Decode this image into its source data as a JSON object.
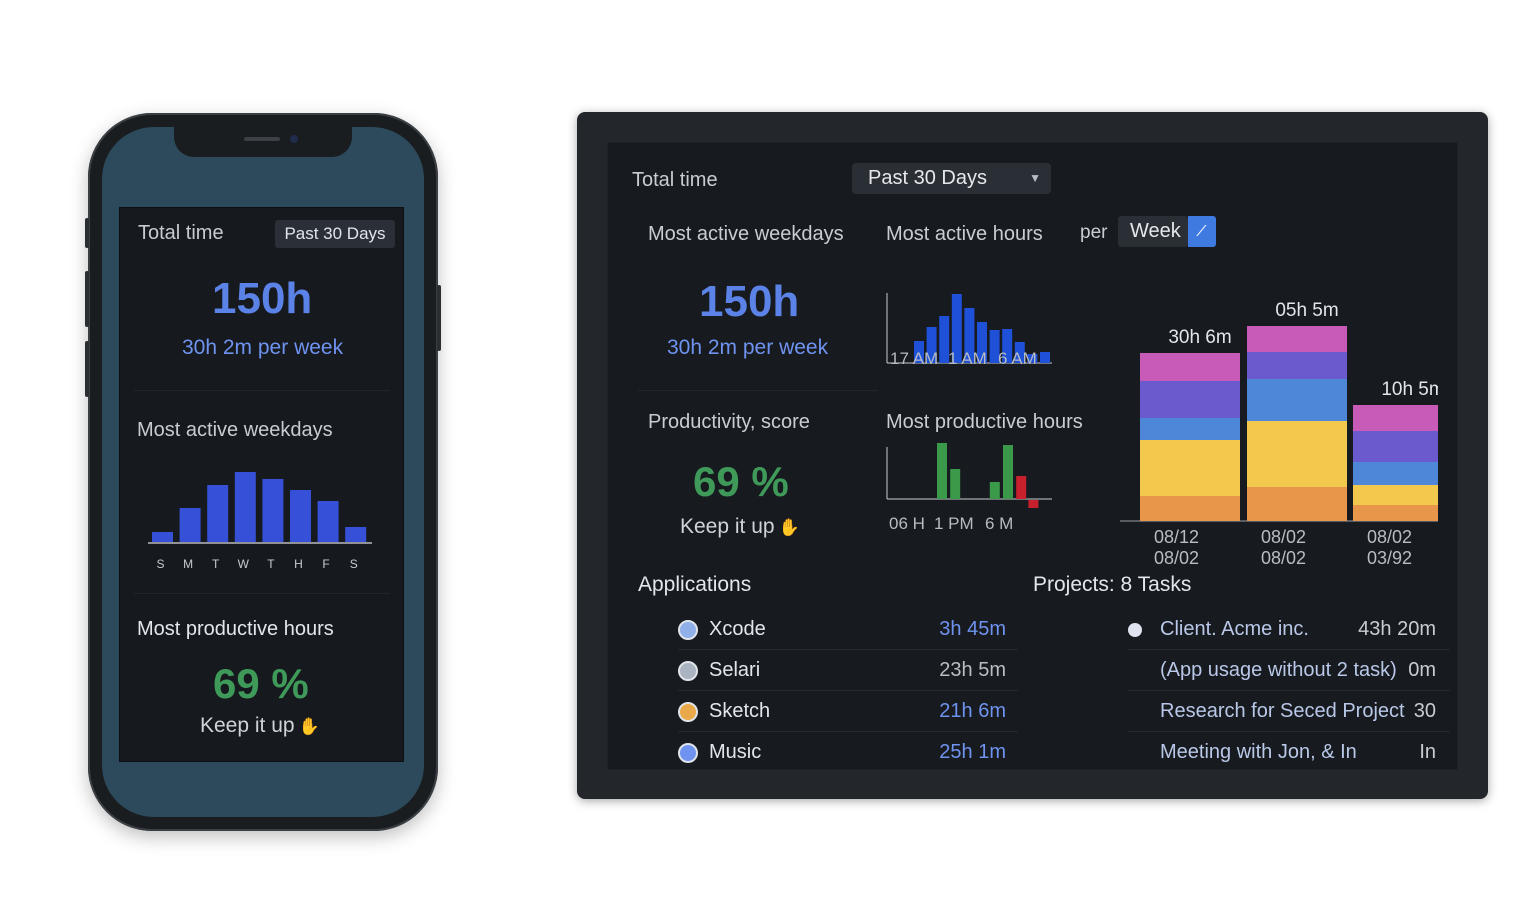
{
  "phone": {
    "total_time_label": "Total time",
    "range_label": "Past 30 Days",
    "total_hours": "150h",
    "per_week": "30h 2m per week",
    "weekdays_title": "Most active weekdays",
    "weekday_labels": [
      "S",
      "M",
      "T",
      "W",
      "T",
      "H",
      "F",
      "S"
    ],
    "weekday_values": [
      10,
      34,
      57,
      70,
      63,
      52,
      41,
      15
    ],
    "productive_title": "Most productive hours",
    "score": "69 %",
    "keep_it_up": "Keep it up",
    "thumb_icon": "thumbs-up-icon"
  },
  "desktop": {
    "total_time_label": "Total time",
    "range_label": "Past 30 Days",
    "weekdays_title": "Most active weekdays",
    "hours_title": "Most active hours",
    "per_label": "per",
    "per_value": "Week",
    "total_hours": "150h",
    "per_week": "30h 2m per week",
    "hours_ticks": [
      "17 AM",
      "1 AM",
      "6  AM"
    ],
    "hours_values": [
      22,
      36,
      47,
      69,
      55,
      41,
      33,
      34,
      21,
      9,
      11
    ],
    "productivity_title": "Productivity, score",
    "productive_hours_title": "Most productive hours",
    "score": "69 %",
    "keep_it_up": "Keep it up",
    "productive_ticks": [
      "06 H",
      "1 PM",
      "6 M"
    ],
    "productive_values": [
      {
        "v": 56,
        "c": "#3a9a4a"
      },
      {
        "v": 30,
        "c": "#3a9a4a"
      },
      {
        "v": 0,
        "c": "#3a9a4a"
      },
      {
        "v": 0,
        "c": "#3a9a4a"
      },
      {
        "v": 17,
        "c": "#3a9a4a"
      },
      {
        "v": 54,
        "c": "#3a9a4a"
      },
      {
        "v": 23,
        "c": "#c8202c"
      },
      {
        "v": -8,
        "c": "#c8202c"
      }
    ],
    "stacks": [
      {
        "label": "30h  6m",
        "dates": [
          "08/12",
          "08/02"
        ],
        "segments": [
          {
            "v": 25,
            "c": "#e8964a"
          },
          {
            "v": 56,
            "c": "#f2c94c"
          },
          {
            "v": 22,
            "c": "#4e86d8"
          },
          {
            "v": 37,
            "c": "#6a5acd"
          },
          {
            "v": 28,
            "c": "#c85bb7"
          }
        ]
      },
      {
        "label": "05h  5m",
        "dates": [
          "08/02",
          "08/02"
        ],
        "segments": [
          {
            "v": 34,
            "c": "#e8964a"
          },
          {
            "v": 66,
            "c": "#f2c94c"
          },
          {
            "v": 42,
            "c": "#4e86d8"
          },
          {
            "v": 27,
            "c": "#6a5acd"
          },
          {
            "v": 26,
            "c": "#c85bb7"
          }
        ]
      },
      {
        "label": "10h  5m",
        "dates": [
          "08/02",
          "03/92"
        ],
        "segments": [
          {
            "v": 16,
            "c": "#e8964a"
          },
          {
            "v": 20,
            "c": "#f2c94c"
          },
          {
            "v": 23,
            "c": "#4e86d8"
          },
          {
            "v": 31,
            "c": "#6a5acd"
          },
          {
            "v": 26,
            "c": "#c85bb7"
          }
        ]
      }
    ],
    "applications_title": "Applications",
    "applications": [
      {
        "name": "Xcode",
        "value": "3h 45m",
        "icon": "globe-icon",
        "icon_color": "#8fb0e8",
        "value_color": "#6f93f0"
      },
      {
        "name": "Selari",
        "value": "23h 5m",
        "icon": "safari-icon",
        "icon_color": "#aab3c2",
        "value_color": "#b9bec6"
      },
      {
        "name": "Sketch",
        "value": "21h 6m",
        "icon": "grid-icon",
        "icon_color": "#e9a948",
        "value_color": "#6f93f0"
      },
      {
        "name": "Music",
        "value": "25h 1m",
        "icon": "music-icon",
        "icon_color": "#6f93f0",
        "value_color": "#6f93f0"
      }
    ],
    "projects_title": "Projects: 8 Tasks",
    "projects": [
      {
        "name": "Client. Acme inc.",
        "value": "43h 20m",
        "dot": true
      },
      {
        "name": "(App usage without 2 task)",
        "value": "0m",
        "dot": false
      },
      {
        "name": "Research for Seced Project",
        "value": "30",
        "dot": false
      },
      {
        "name": "Meeting with Jon, & In",
        "value": "In",
        "dot": false
      }
    ]
  }
}
